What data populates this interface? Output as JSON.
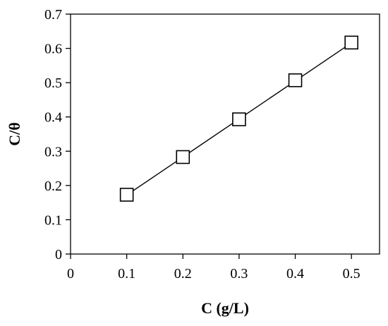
{
  "chart_data": {
    "type": "scatter",
    "xlabel": "C (g/L)",
    "ylabel": "C/θ",
    "xlim": [
      0,
      0.55
    ],
    "ylim": [
      0,
      0.7
    ],
    "x_ticks": [
      0,
      0.1,
      0.2,
      0.3,
      0.4,
      0.5
    ],
    "x_tick_labels": [
      "0",
      "0.1",
      "0.2",
      "0.3",
      "0.4",
      "0.5"
    ],
    "y_ticks": [
      0,
      0.1,
      0.2,
      0.3,
      0.4,
      0.5,
      0.6,
      0.7
    ],
    "y_tick_labels": [
      "0",
      "0.1",
      "0.2",
      "0.3",
      "0.4",
      "0.5",
      "0.6",
      "0.7"
    ],
    "grid": false,
    "legend": "none",
    "series": [
      {
        "marker": "open-square",
        "x": [
          0.1,
          0.2,
          0.3,
          0.4,
          0.5
        ],
        "y": [
          0.173,
          0.283,
          0.393,
          0.507,
          0.617
        ]
      }
    ],
    "fit_line": {
      "x": [
        0.1,
        0.5
      ],
      "y": [
        0.172,
        0.616
      ]
    },
    "colors": {
      "marker_stroke": "#000000",
      "line": "#000000",
      "background": "#ffffff"
    }
  }
}
